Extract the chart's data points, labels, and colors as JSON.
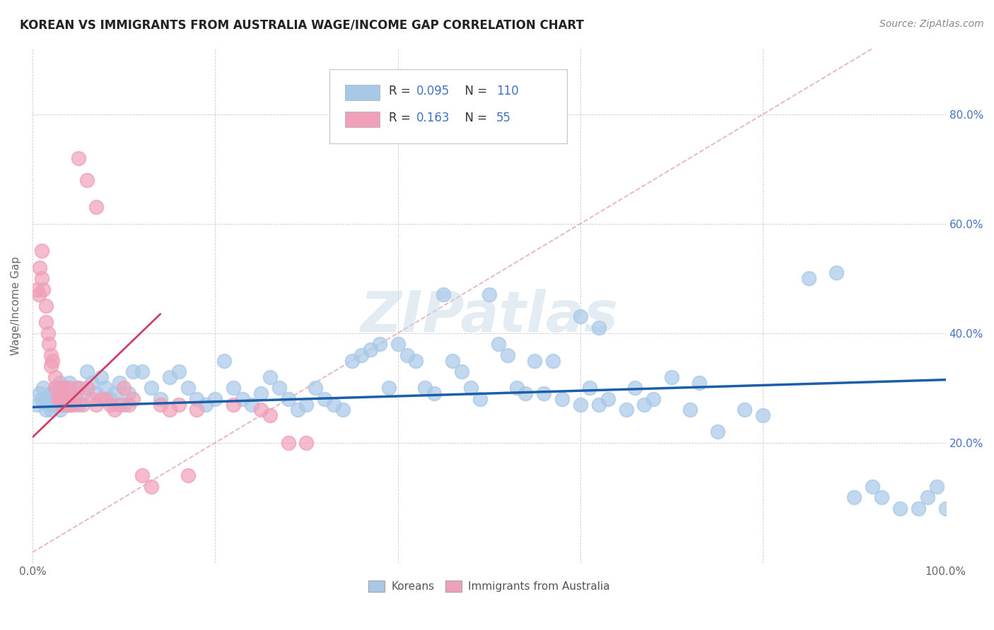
{
  "title": "KOREAN VS IMMIGRANTS FROM AUSTRALIA WAGE/INCOME GAP CORRELATION CHART",
  "source": "Source: ZipAtlas.com",
  "ylabel": "Wage/Income Gap",
  "xlim": [
    0.0,
    1.0
  ],
  "ylim": [
    -0.02,
    0.92
  ],
  "y_ticks": [
    0.2,
    0.4,
    0.6,
    0.8
  ],
  "y_tick_labels": [
    "20.0%",
    "40.0%",
    "60.0%",
    "80.0%"
  ],
  "blue_scatter_color": "#a8c8e8",
  "pink_scatter_color": "#f0a0b8",
  "blue_line_color": "#1a5fa8",
  "pink_line_color": "#d04060",
  "diag_color": "#e0a0b0",
  "legend_blue_R": "0.095",
  "legend_blue_N": "110",
  "legend_pink_R": "0.163",
  "legend_pink_N": "55",
  "watermark": "ZIPatlas",
  "blue_trend": [
    0.0,
    1.0,
    0.265,
    0.315
  ],
  "pink_trend": [
    0.0,
    0.14,
    0.21,
    0.435
  ],
  "blue_scatter_x": [
    0.005,
    0.008,
    0.01,
    0.012,
    0.015,
    0.015,
    0.018,
    0.02,
    0.02,
    0.022,
    0.025,
    0.025,
    0.028,
    0.03,
    0.03,
    0.032,
    0.035,
    0.035,
    0.038,
    0.04,
    0.04,
    0.042,
    0.045,
    0.048,
    0.05,
    0.055,
    0.06,
    0.065,
    0.07,
    0.075,
    0.08,
    0.085,
    0.09,
    0.095,
    0.1,
    0.105,
    0.11,
    0.12,
    0.13,
    0.14,
    0.15,
    0.16,
    0.17,
    0.18,
    0.19,
    0.2,
    0.21,
    0.22,
    0.23,
    0.24,
    0.25,
    0.26,
    0.27,
    0.28,
    0.29,
    0.3,
    0.31,
    0.32,
    0.33,
    0.34,
    0.35,
    0.36,
    0.37,
    0.38,
    0.39,
    0.4,
    0.41,
    0.42,
    0.43,
    0.44,
    0.45,
    0.46,
    0.47,
    0.48,
    0.49,
    0.5,
    0.51,
    0.52,
    0.53,
    0.54,
    0.55,
    0.56,
    0.57,
    0.58,
    0.6,
    0.61,
    0.62,
    0.63,
    0.65,
    0.66,
    0.67,
    0.68,
    0.7,
    0.72,
    0.73,
    0.75,
    0.78,
    0.8,
    0.85,
    0.88,
    0.9,
    0.92,
    0.93,
    0.95,
    0.97,
    0.98,
    0.99,
    1.0,
    0.6,
    0.62
  ],
  "blue_scatter_y": [
    0.27,
    0.29,
    0.28,
    0.3,
    0.26,
    0.28,
    0.27,
    0.26,
    0.29,
    0.28,
    0.3,
    0.27,
    0.28,
    0.26,
    0.31,
    0.29,
    0.27,
    0.3,
    0.28,
    0.27,
    0.31,
    0.29,
    0.28,
    0.3,
    0.27,
    0.29,
    0.33,
    0.31,
    0.29,
    0.32,
    0.3,
    0.28,
    0.29,
    0.31,
    0.27,
    0.29,
    0.33,
    0.33,
    0.3,
    0.28,
    0.32,
    0.33,
    0.3,
    0.28,
    0.27,
    0.28,
    0.35,
    0.3,
    0.28,
    0.27,
    0.29,
    0.32,
    0.3,
    0.28,
    0.26,
    0.27,
    0.3,
    0.28,
    0.27,
    0.26,
    0.35,
    0.36,
    0.37,
    0.38,
    0.3,
    0.38,
    0.36,
    0.35,
    0.3,
    0.29,
    0.47,
    0.35,
    0.33,
    0.3,
    0.28,
    0.47,
    0.38,
    0.36,
    0.3,
    0.29,
    0.35,
    0.29,
    0.35,
    0.28,
    0.27,
    0.3,
    0.27,
    0.28,
    0.26,
    0.3,
    0.27,
    0.28,
    0.32,
    0.26,
    0.31,
    0.22,
    0.26,
    0.25,
    0.5,
    0.51,
    0.1,
    0.12,
    0.1,
    0.08,
    0.08,
    0.1,
    0.12,
    0.08,
    0.43,
    0.41
  ],
  "pink_scatter_x": [
    0.005,
    0.007,
    0.008,
    0.01,
    0.01,
    0.012,
    0.015,
    0.015,
    0.017,
    0.018,
    0.02,
    0.02,
    0.022,
    0.025,
    0.025,
    0.028,
    0.03,
    0.03,
    0.032,
    0.035,
    0.035,
    0.038,
    0.04,
    0.04,
    0.042,
    0.045,
    0.048,
    0.05,
    0.055,
    0.06,
    0.065,
    0.07,
    0.075,
    0.08,
    0.085,
    0.09,
    0.095,
    0.1,
    0.105,
    0.11,
    0.12,
    0.13,
    0.14,
    0.15,
    0.16,
    0.17,
    0.18,
    0.22,
    0.25,
    0.26,
    0.28,
    0.3,
    0.05,
    0.06,
    0.07
  ],
  "pink_scatter_y": [
    0.48,
    0.47,
    0.52,
    0.55,
    0.5,
    0.48,
    0.45,
    0.42,
    0.4,
    0.38,
    0.36,
    0.34,
    0.35,
    0.32,
    0.3,
    0.28,
    0.3,
    0.28,
    0.27,
    0.3,
    0.28,
    0.27,
    0.28,
    0.3,
    0.27,
    0.27,
    0.28,
    0.3,
    0.27,
    0.3,
    0.28,
    0.27,
    0.28,
    0.28,
    0.27,
    0.26,
    0.27,
    0.3,
    0.27,
    0.28,
    0.14,
    0.12,
    0.27,
    0.26,
    0.27,
    0.14,
    0.26,
    0.27,
    0.26,
    0.25,
    0.2,
    0.2,
    0.72,
    0.68,
    0.63
  ]
}
